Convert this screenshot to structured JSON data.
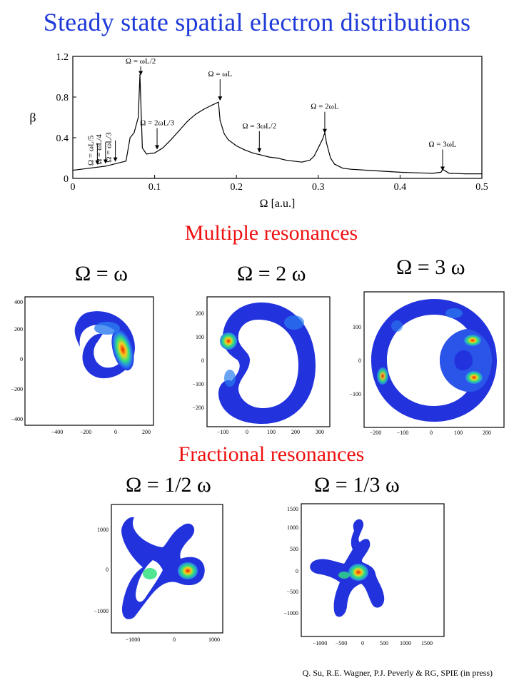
{
  "title": "Steady state spatial electron distributions",
  "sections": {
    "multiple": "Multiple resonances",
    "fractional": "Fractional resonances"
  },
  "chart_data": {
    "type": "line",
    "xlabel": "Ω [a.u.]",
    "ylabel": "β",
    "xlim": [
      0,
      0.5
    ],
    "ylim": [
      0,
      1.2
    ],
    "xticks": [
      0,
      0.1,
      0.2,
      0.3,
      0.4,
      0.5
    ],
    "yticks": [
      0,
      0.4,
      0.8,
      1.2
    ],
    "series": [
      {
        "x": [
          0.0,
          0.01,
          0.02,
          0.03,
          0.04,
          0.05,
          0.06,
          0.065,
          0.07,
          0.075,
          0.08,
          0.082,
          0.085,
          0.09,
          0.1,
          0.11,
          0.12,
          0.13,
          0.14,
          0.15,
          0.16,
          0.17,
          0.178,
          0.18,
          0.185,
          0.19,
          0.2,
          0.21,
          0.22,
          0.23,
          0.24,
          0.25,
          0.26,
          0.27,
          0.28,
          0.29,
          0.295,
          0.3,
          0.305,
          0.308,
          0.31,
          0.315,
          0.32,
          0.33,
          0.34,
          0.36,
          0.38,
          0.4,
          0.42,
          0.44,
          0.45,
          0.452,
          0.46,
          0.48,
          0.5
        ],
        "y": [
          0.08,
          0.09,
          0.1,
          0.11,
          0.12,
          0.14,
          0.16,
          0.17,
          0.4,
          0.45,
          0.6,
          1.02,
          0.3,
          0.24,
          0.25,
          0.3,
          0.38,
          0.47,
          0.56,
          0.63,
          0.68,
          0.72,
          0.75,
          0.57,
          0.44,
          0.38,
          0.32,
          0.28,
          0.25,
          0.23,
          0.21,
          0.2,
          0.18,
          0.17,
          0.16,
          0.18,
          0.22,
          0.3,
          0.38,
          0.45,
          0.35,
          0.2,
          0.14,
          0.1,
          0.09,
          0.08,
          0.07,
          0.06,
          0.055,
          0.05,
          0.06,
          0.09,
          0.05,
          0.045,
          0.045
        ]
      }
    ],
    "annotations": [
      {
        "text": "Ω = ωL/5",
        "x": 0.03,
        "y": 0.12
      },
      {
        "text": "Ω = ωL/4",
        "x": 0.04,
        "y": 0.13
      },
      {
        "text": "Ω = ωL/3",
        "x": 0.052,
        "y": 0.15
      },
      {
        "text": "Ω = ωL/2",
        "x": 0.083,
        "y": 1.0
      },
      {
        "text": "Ω = 2ωL/3",
        "x": 0.103,
        "y": 0.27
      },
      {
        "text": "Ω = ωL",
        "x": 0.18,
        "y": 0.75
      },
      {
        "text": "Ω = 3ωL/2",
        "x": 0.228,
        "y": 0.24
      },
      {
        "text": "Ω = 2ωL",
        "x": 0.308,
        "y": 0.43
      },
      {
        "text": "Ω = 3ωL",
        "x": 0.452,
        "y": 0.06
      }
    ]
  },
  "panels": [
    {
      "label": "Ω = ω",
      "xticks": [
        "−400",
        "−200",
        "0",
        "200"
      ],
      "yticks": [
        "400",
        "200",
        "0",
        "−200",
        "−400"
      ]
    },
    {
      "label": "Ω = 2 ω",
      "xticks": [
        "−100",
        "0",
        "100",
        "200",
        "300"
      ],
      "yticks": [
        "200",
        "100",
        "0",
        "−100",
        "−200"
      ]
    },
    {
      "label": "Ω = 3 ω",
      "xticks": [
        "−200",
        "−100",
        "0",
        "100",
        "200"
      ],
      "yticks": [
        "100",
        "0",
        "−100"
      ]
    },
    {
      "label": "Ω = 1/2 ω",
      "xticks": [
        "−1000",
        "0",
        "1000"
      ],
      "yticks": [
        "1000",
        "0",
        "−1000"
      ]
    },
    {
      "label": "Ω = 1/3 ω",
      "xticks": [
        "−1000",
        "−500",
        "0",
        "500",
        "1000",
        "1500"
      ],
      "yticks": [
        "1500",
        "1000",
        "500",
        "0",
        "−500",
        "−1000"
      ]
    }
  ],
  "citation": "Q. Su, R.E. Wagner, P.J. Peverly & RG, SPIE (in press)",
  "colors": {
    "title": "#1e3ad8",
    "section": "#ee1111",
    "density_low": "#2233dd",
    "density_high": "#ee2200"
  }
}
